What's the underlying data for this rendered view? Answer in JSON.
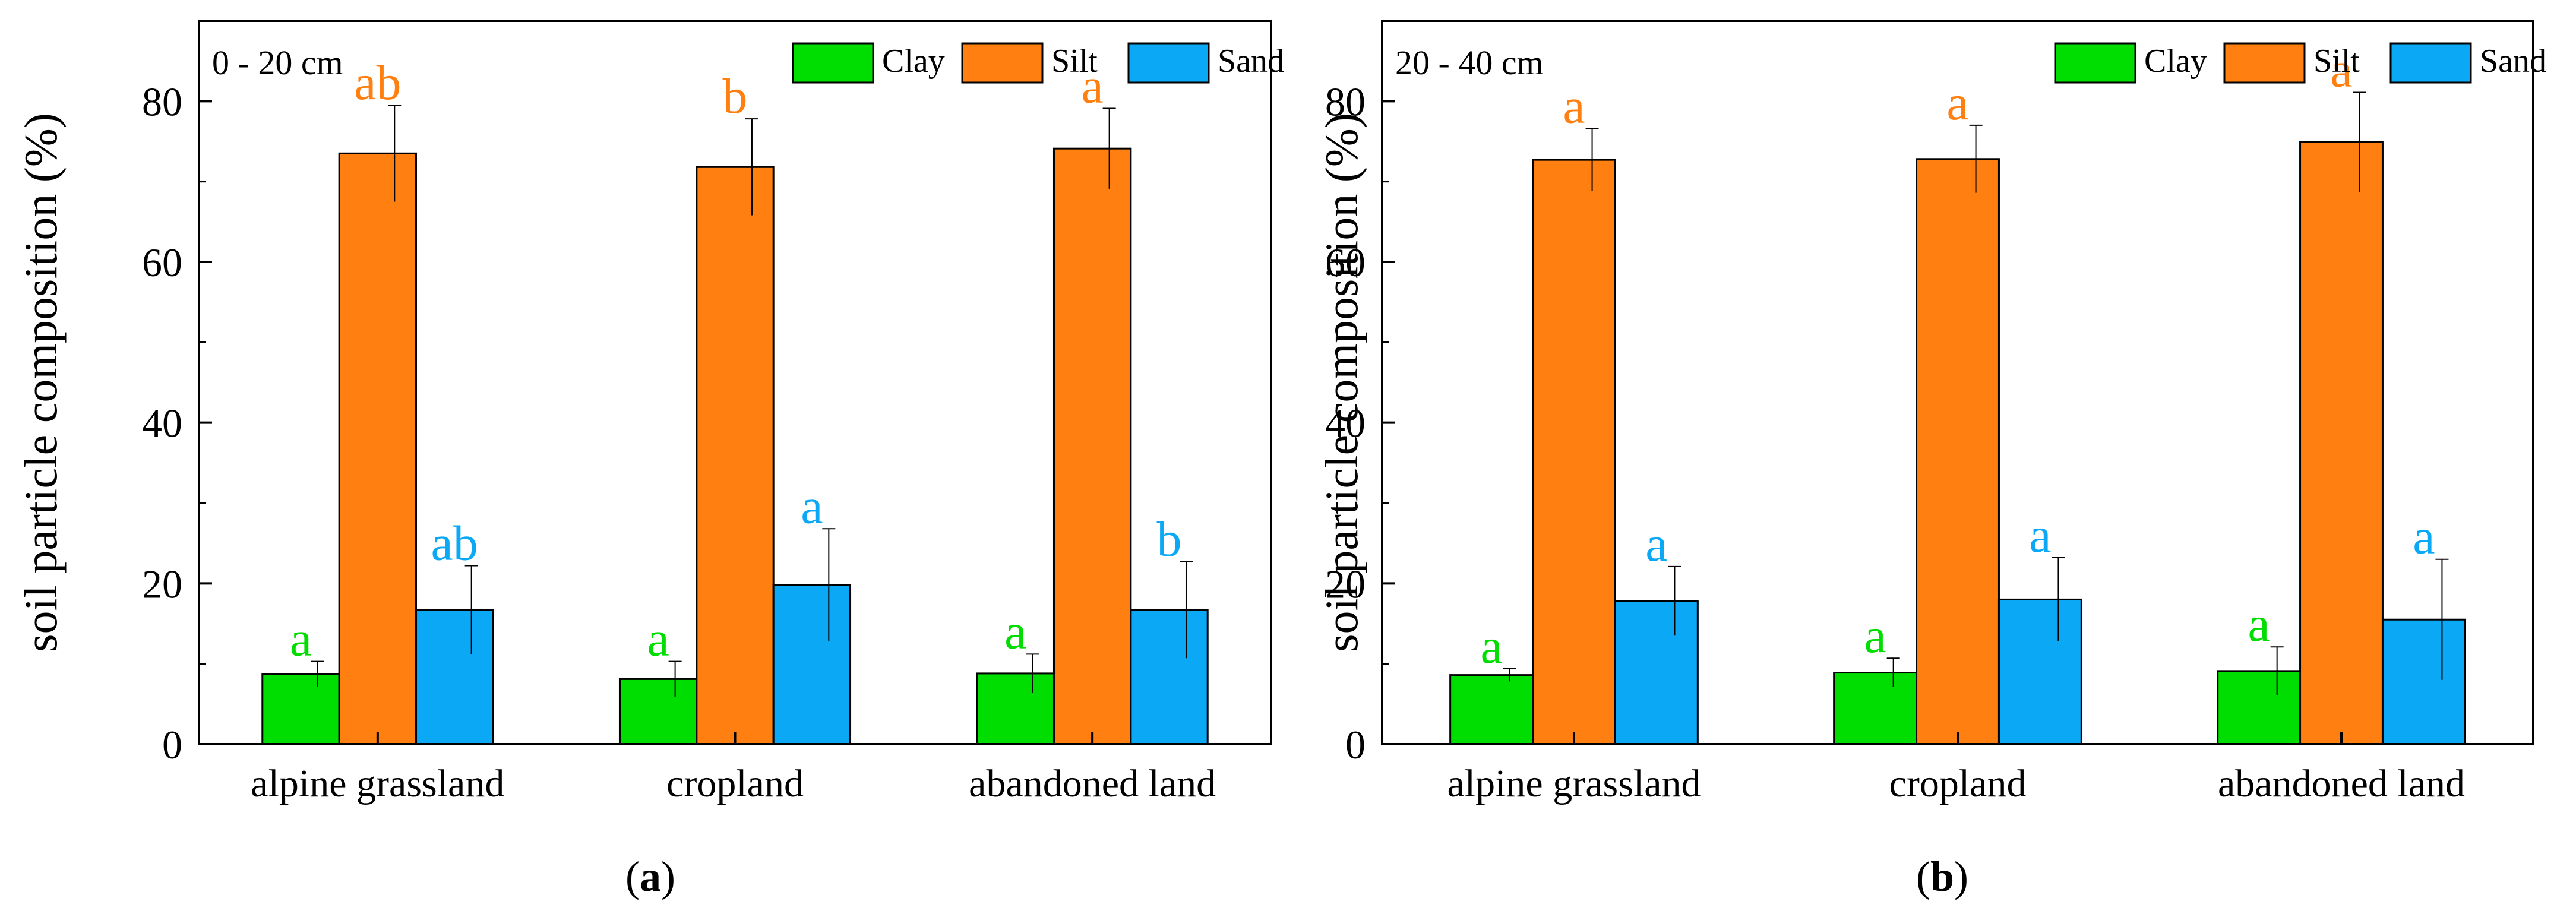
{
  "colors": {
    "clay": "#00dd00",
    "silt": "#ff8010",
    "sand": "#0aa8f5"
  },
  "chart_data": [
    {
      "type": "bar",
      "panel_label": "(a)",
      "depth_label": "0 - 20 cm",
      "ylabel": "soil particle composition (%)",
      "xlabel": "",
      "ylim": [
        0,
        90
      ],
      "yticks": [
        0,
        20,
        40,
        60,
        80
      ],
      "categories": [
        "alpine grassland",
        "cropland",
        "abandoned land"
      ],
      "legend_position": "top-right",
      "series": [
        {
          "name": "Clay",
          "color_key": "clay",
          "values": [
            8.7,
            8.1,
            8.8
          ],
          "errors": [
            1.6,
            2.2,
            2.4
          ],
          "letters": [
            "a",
            "a",
            "a"
          ]
        },
        {
          "name": "Silt",
          "color_key": "silt",
          "values": [
            73.5,
            71.8,
            74.1
          ],
          "errors": [
            6.0,
            6.0,
            5.0
          ],
          "letters": [
            "ab",
            "b",
            "a"
          ]
        },
        {
          "name": "Sand",
          "color_key": "sand",
          "values": [
            16.7,
            19.8,
            16.7
          ],
          "errors": [
            5.5,
            7.0,
            6.0
          ],
          "letters": [
            "ab",
            "a",
            "b"
          ]
        }
      ]
    },
    {
      "type": "bar",
      "panel_label": "(b)",
      "depth_label": "20 - 40 cm",
      "ylabel": "soil particle composition (%)",
      "xlabel": "",
      "ylim": [
        0,
        90
      ],
      "yticks": [
        0,
        20,
        40,
        60,
        80
      ],
      "categories": [
        "alpine grassland",
        "cropland",
        "abandoned land"
      ],
      "legend_position": "top-right",
      "series": [
        {
          "name": "Clay",
          "color_key": "clay",
          "values": [
            8.6,
            8.9,
            9.1
          ],
          "errors": [
            0.8,
            1.8,
            3.0
          ],
          "letters": [
            "a",
            "a",
            "a"
          ]
        },
        {
          "name": "Silt",
          "color_key": "silt",
          "values": [
            72.7,
            72.8,
            74.9
          ],
          "errors": [
            3.9,
            4.2,
            6.2
          ],
          "letters": [
            "a",
            "a",
            "a"
          ]
        },
        {
          "name": "Sand",
          "color_key": "sand",
          "values": [
            17.8,
            18.0,
            15.5
          ],
          "errors": [
            4.3,
            5.2,
            7.5
          ],
          "letters": [
            "a",
            "a",
            "a"
          ]
        }
      ]
    }
  ]
}
